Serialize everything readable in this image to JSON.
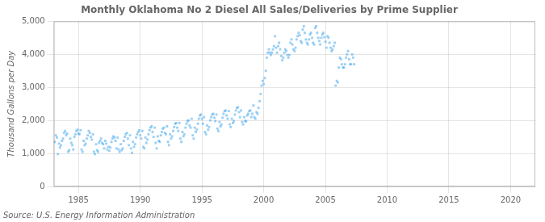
{
  "chart_data": {
    "type": "scatter",
    "title": "Monthly Oklahoma No 2 Diesel All Sales/Deliveries by Prime Supplier",
    "ylabel": "Thousand Gallons per Day",
    "annotations": [
      "Source: U.S. Energy Information Administration"
    ],
    "marker": "square",
    "grid": true,
    "xlim": [
      1983.0,
      2022.0
    ],
    "xticks": [
      1985,
      1990,
      1995,
      2000,
      2005,
      2010,
      2015,
      2020
    ],
    "ylim": [
      0,
      5000
    ],
    "yticks": [
      0,
      {
        "value": 1000,
        "label": "1,000"
      },
      {
        "value": 2000,
        "label": "2,000"
      },
      {
        "value": 3000,
        "label": "3,000"
      },
      {
        "value": 4000,
        "label": "4,000"
      },
      {
        "value": 5000,
        "label": "5,000"
      }
    ],
    "x": [
      1983.08,
      1983.17,
      1983.25,
      1983.33,
      1983.42,
      1983.5,
      1983.58,
      1983.67,
      1983.75,
      1983.83,
      1983.92,
      1984.0,
      1984.08,
      1984.17,
      1984.25,
      1984.33,
      1984.42,
      1984.5,
      1984.58,
      1984.67,
      1984.75,
      1984.83,
      1984.92,
      1985.0,
      1985.08,
      1985.17,
      1985.25,
      1985.33,
      1985.42,
      1985.5,
      1985.58,
      1985.67,
      1985.75,
      1985.83,
      1985.92,
      1986.0,
      1986.08,
      1986.17,
      1986.25,
      1986.33,
      1986.42,
      1986.5,
      1986.58,
      1986.67,
      1986.75,
      1986.83,
      1986.92,
      1987.0,
      1987.08,
      1987.17,
      1987.25,
      1987.33,
      1987.42,
      1987.5,
      1987.58,
      1987.67,
      1987.75,
      1987.83,
      1987.92,
      1988.0,
      1988.08,
      1988.17,
      1988.25,
      1988.33,
      1988.42,
      1988.5,
      1988.58,
      1988.67,
      1988.75,
      1988.83,
      1988.92,
      1989.0,
      1989.08,
      1989.17,
      1989.25,
      1989.33,
      1989.42,
      1989.5,
      1989.58,
      1989.67,
      1989.75,
      1989.83,
      1989.92,
      1990.0,
      1990.08,
      1990.17,
      1990.25,
      1990.33,
      1990.42,
      1990.5,
      1990.58,
      1990.67,
      1990.75,
      1990.83,
      1990.92,
      1991.0,
      1991.08,
      1991.17,
      1991.25,
      1991.33,
      1991.42,
      1991.5,
      1991.58,
      1991.67,
      1991.75,
      1991.83,
      1991.92,
      1992.0,
      1992.08,
      1992.17,
      1992.25,
      1992.33,
      1992.42,
      1992.5,
      1992.58,
      1992.67,
      1992.75,
      1992.83,
      1992.92,
      1993.0,
      1993.08,
      1993.17,
      1993.25,
      1993.33,
      1993.42,
      1993.5,
      1993.58,
      1993.67,
      1993.75,
      1993.83,
      1993.92,
      1994.0,
      1994.08,
      1994.17,
      1994.25,
      1994.33,
      1994.42,
      1994.5,
      1994.58,
      1994.67,
      1994.75,
      1994.83,
      1994.92,
      1995.0,
      1995.08,
      1995.17,
      1995.25,
      1995.33,
      1995.42,
      1995.5,
      1995.58,
      1995.67,
      1995.75,
      1995.83,
      1995.92,
      1996.0,
      1996.08,
      1996.17,
      1996.25,
      1996.33,
      1996.42,
      1996.5,
      1996.58,
      1996.67,
      1996.75,
      1996.83,
      1996.92,
      1997.0,
      1997.08,
      1997.17,
      1997.25,
      1997.33,
      1997.42,
      1997.5,
      1997.58,
      1997.67,
      1997.75,
      1997.83,
      1997.92,
      1998.0,
      1998.08,
      1998.17,
      1998.25,
      1998.33,
      1998.42,
      1998.5,
      1998.58,
      1998.67,
      1998.75,
      1998.83,
      1998.92,
      1999.0,
      1999.08,
      1999.17,
      1999.25,
      1999.33,
      1999.42,
      1999.5,
      1999.58,
      1999.67,
      1999.75,
      1999.83,
      1999.92,
      2000.0,
      2000.08,
      2000.17,
      2000.25,
      2000.33,
      2000.42,
      2000.5,
      2000.58,
      2000.67,
      2000.75,
      2000.83,
      2000.92,
      2001.0,
      2001.08,
      2001.17,
      2001.25,
      2001.33,
      2001.42,
      2001.5,
      2001.58,
      2001.67,
      2001.75,
      2001.83,
      2001.92,
      2002.0,
      2002.08,
      2002.17,
      2002.25,
      2002.33,
      2002.42,
      2002.5,
      2002.58,
      2002.67,
      2002.75,
      2002.83,
      2002.92,
      2003.0,
      2003.08,
      2003.17,
      2003.25,
      2003.33,
      2003.42,
      2003.5,
      2003.58,
      2003.67,
      2003.75,
      2003.83,
      2003.92,
      2004.0,
      2004.08,
      2004.17,
      2004.25,
      2004.33,
      2004.42,
      2004.5,
      2004.58,
      2004.67,
      2004.75,
      2004.83,
      2004.92,
      2005.0,
      2005.08,
      2005.17,
      2005.25,
      2005.33,
      2005.42,
      2005.5,
      2005.58,
      2005.67,
      2005.75,
      2005.83,
      2005.92,
      2006.0,
      2006.08,
      2006.17,
      2006.25,
      2006.33,
      2006.42,
      2006.5,
      2006.58,
      2006.67,
      2006.75,
      2006.83,
      2006.92,
      2007.0,
      2007.08,
      2007.17,
      2007.25,
      2007.33
    ],
    "values": [
      1350,
      1550,
      1480,
      980,
      1300,
      1180,
      1250,
      1380,
      1450,
      1620,
      1680,
      1550,
      1600,
      1050,
      1100,
      1450,
      1320,
      1250,
      1120,
      1500,
      1580,
      1680,
      1720,
      1600,
      1580,
      1700,
      1120,
      1050,
      1380,
      1250,
      1300,
      1450,
      1550,
      1680,
      1620,
      1500,
      1420,
      1580,
      1050,
      980,
      1280,
      1100,
      1050,
      1320,
      1380,
      1450,
      1320,
      1280,
      1150,
      1380,
      1300,
      1120,
      1200,
      1080,
      1180,
      1350,
      1450,
      1520,
      1480,
      1380,
      1150,
      1480,
      1120,
      1050,
      1280,
      1100,
      1150,
      1380,
      1500,
      1580,
      1620,
      1450,
      1250,
      1550,
      1150,
      1020,
      1350,
      1200,
      1280,
      1480,
      1580,
      1650,
      1700,
      1550,
      1450,
      1680,
      1200,
      1150,
      1480,
      1320,
      1420,
      1580,
      1700,
      1780,
      1820,
      1650,
      1500,
      1780,
      1320,
      1150,
      1520,
      1380,
      1350,
      1550,
      1650,
      1750,
      1780,
      1620,
      1580,
      1820,
      1350,
      1250,
      1580,
      1450,
      1520,
      1680,
      1800,
      1900,
      1920,
      1780,
      1680,
      1920,
      1450,
      1350,
      1650,
      1520,
      1580,
      1780,
      1900,
      1980,
      2000,
      1850,
      1780,
      2050,
      1550,
      1450,
      1780,
      1650,
      1720,
      1900,
      2050,
      2150,
      2180,
      2050,
      1900,
      2100,
      1650,
      1580,
      1850,
      1720,
      1800,
      2000,
      2100,
      2180,
      2200,
      2080,
      1980,
      2180,
      1750,
      1680,
      1950,
      1820,
      1880,
      2080,
      2200,
      2280,
      2300,
      2150,
      2050,
      2280,
      1880,
      1800,
      2050,
      1920,
      1980,
      2180,
      2300,
      2380,
      2400,
      2250,
      2100,
      2300,
      1950,
      1880,
      2100,
      1980,
      1980,
      2150,
      2200,
      2280,
      2300,
      2100,
      2200,
      2450,
      2100,
      2050,
      2250,
      2200,
      2380,
      2580,
      2800,
      3050,
      3200,
      3100,
      3280,
      3500,
      3900,
      4050,
      4150,
      4050,
      3980,
      4050,
      4150,
      4250,
      4550,
      4200,
      4050,
      4250,
      4350,
      4150,
      3950,
      3820,
      3900,
      4050,
      4150,
      4100,
      3980,
      3900,
      3980,
      4350,
      4450,
      4300,
      4150,
      4100,
      4200,
      4450,
      4550,
      4650,
      4580,
      4400,
      4350,
      4750,
      4850,
      4650,
      4450,
      4350,
      4300,
      4450,
      4600,
      4650,
      4500,
      4350,
      4300,
      4800,
      4850,
      4650,
      4500,
      4400,
      4300,
      4500,
      4600,
      4650,
      4520,
      4380,
      4200,
      4550,
      4500,
      4350,
      4200,
      4100,
      4150,
      4250,
      4350,
      3050,
      3200,
      3150,
      3600,
      3900,
      3850,
      3700,
      3600,
      3600,
      3700,
      3900,
      4000,
      4100,
      3850,
      3700,
      3700,
      4000,
      3900,
      3700
    ]
  }
}
